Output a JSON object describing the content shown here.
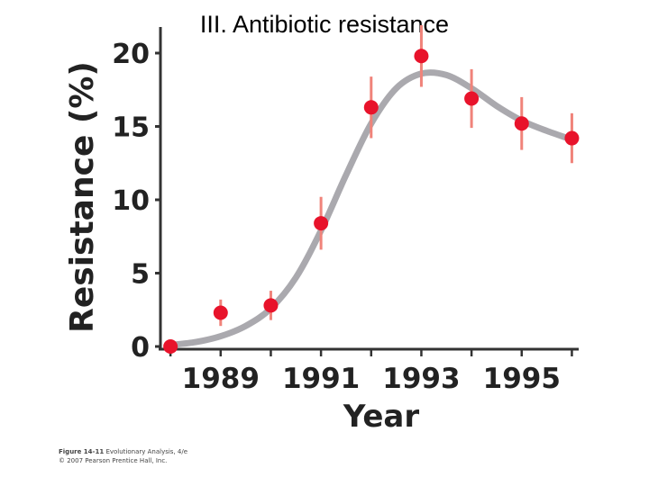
{
  "slide": {
    "title": "III. Antibiotic resistance"
  },
  "credit": {
    "figure_label": "Figure 14-11",
    "book": "Evolutionary Analysis, 4/e",
    "copyright": "© 2007 Pearson Prentice Hall, Inc."
  },
  "colors": {
    "point": "#e8132b",
    "error_bar": "#f0837a",
    "curve": "#aaa9ae",
    "axis": "#333333"
  },
  "chart_data": {
    "type": "scatter",
    "title": "",
    "xlabel": "Year",
    "ylabel": "Resistance (%)",
    "xlim": [
      1987.8,
      1996.1
    ],
    "ylim": [
      0,
      20
    ],
    "x_ticks": [
      1989,
      1991,
      1993,
      1995
    ],
    "y_ticks": [
      0,
      5,
      10,
      15,
      20
    ],
    "x_tick_labels": [
      "1989",
      "1991",
      "1993",
      "1995"
    ],
    "y_tick_labels": [
      "0",
      "5",
      "10",
      "15",
      "20"
    ],
    "grid": false,
    "legend": "none",
    "points": [
      {
        "x": 1988,
        "y": 0,
        "err": 0
      },
      {
        "x": 1989,
        "y": 2.3,
        "err": 0.9
      },
      {
        "x": 1990,
        "y": 2.8,
        "err": 1.0
      },
      {
        "x": 1991,
        "y": 8.4,
        "err": 1.8
      },
      {
        "x": 1992,
        "y": 16.3,
        "err": 2.1
      },
      {
        "x": 1993,
        "y": 19.8,
        "err": 2.1
      },
      {
        "x": 1994,
        "y": 16.9,
        "err": 2.0
      },
      {
        "x": 1995,
        "y": 15.2,
        "err": 1.8
      },
      {
        "x": 1996,
        "y": 14.2,
        "err": 1.7
      }
    ],
    "fit_curve": [
      {
        "x": 1988,
        "y": 0.1
      },
      {
        "x": 1988.5,
        "y": 0.3
      },
      {
        "x": 1989,
        "y": 0.7
      },
      {
        "x": 1989.5,
        "y": 1.4
      },
      {
        "x": 1990,
        "y": 2.6
      },
      {
        "x": 1990.5,
        "y": 4.7
      },
      {
        "x": 1991,
        "y": 7.9
      },
      {
        "x": 1991.5,
        "y": 11.7
      },
      {
        "x": 1992,
        "y": 15.2
      },
      {
        "x": 1992.5,
        "y": 17.6
      },
      {
        "x": 1993,
        "y": 18.6
      },
      {
        "x": 1993.5,
        "y": 18.5
      },
      {
        "x": 1994,
        "y": 17.6
      },
      {
        "x": 1994.5,
        "y": 16.4
      },
      {
        "x": 1995,
        "y": 15.4
      },
      {
        "x": 1995.5,
        "y": 14.7
      },
      {
        "x": 1996,
        "y": 14.1
      }
    ]
  }
}
